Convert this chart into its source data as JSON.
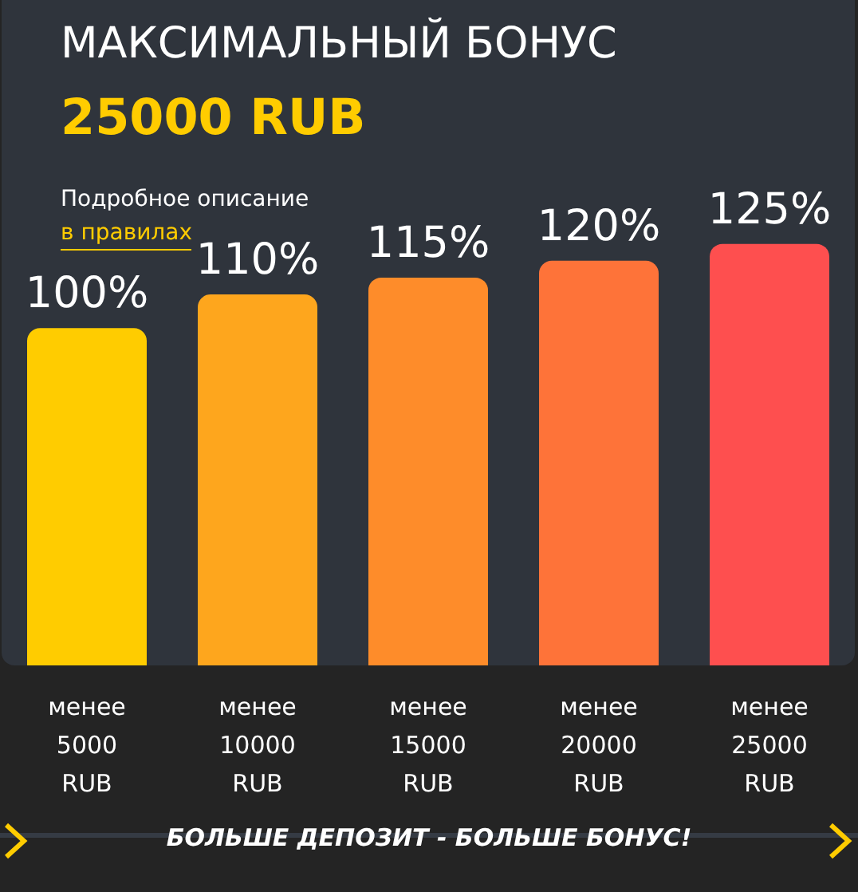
{
  "chart_data": {
    "type": "bar",
    "title": "МАКСИМАЛЬНЫЙ БОНУС",
    "subtitle": "25000 RUB",
    "annotations": [
      "Подробное описание",
      "в правилах",
      "БОЛЬШЕ ДЕПОЗИТ - БОЛЬШЕ БОНУС!"
    ],
    "categories": [
      "менее 5000 RUB",
      "менее 10000 RUB",
      "менее 15000 RUB",
      "менее 20000 RUB",
      "менее 25000 RUB"
    ],
    "values": [
      100,
      110,
      115,
      120,
      125
    ],
    "colors": [
      "#ffcc00",
      "#fea61d",
      "#fe8c2a",
      "#fe7339",
      "#fe4f4f"
    ],
    "value_labels": [
      "100%",
      "110%",
      "115%",
      "120%",
      "125%"
    ],
    "tick_labels": "x",
    "grid": false
  }
}
